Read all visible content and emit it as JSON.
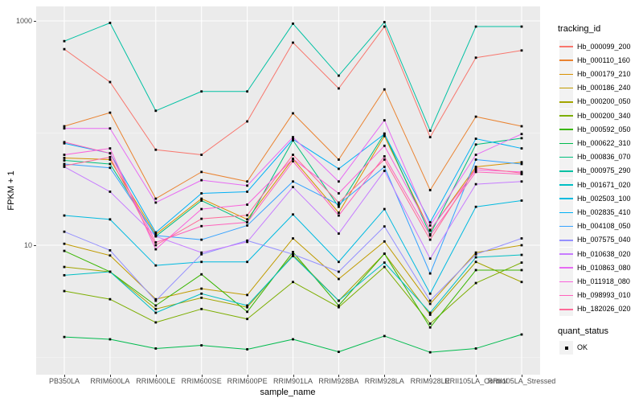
{
  "figure": {
    "y_axis": {
      "title": "FPKM + 1",
      "scale": "log10",
      "tick_labels": [
        "1000",
        "10"
      ],
      "tick_values": [
        1000,
        10
      ],
      "minor_grid_values": [
        100,
        1
      ]
    },
    "x_axis": {
      "title": "sample_name"
    },
    "legend": {
      "tracking_title": "tracking_id",
      "quant_title": "quant_status",
      "quant_ok_label": "OK",
      "quant_marker": "black-square"
    },
    "colors": {
      "panel_bg": "#EBEBEB",
      "grid": "#FFFFFF",
      "point": "#000000",
      "axis_text": "#4D4D4D",
      "legend_key_bg": "#F2F2F2"
    }
  },
  "chart_data": {
    "type": "line",
    "title": "",
    "xlabel": "sample_name",
    "ylabel": "FPKM + 1",
    "yscale": "log10",
    "ylim": [
      1,
      1000
    ],
    "yticks": [
      1000,
      10
    ],
    "grid": true,
    "legend_position": "right",
    "point_marker": "black-square",
    "x": [
      "PB350LA",
      "RRIM600LA",
      "RRIM600LE",
      "RRIM600SE",
      "RRIM600PE",
      "RRIM901LA",
      "RRIM928BA",
      "RRIM928LA",
      "RRIM928LE",
      "RRII105LA_Control",
      "RRII105LA_Stressed"
    ],
    "series": [
      {
        "name": "Hb_000099_200",
        "color": "#F8766D",
        "values": [
          560,
          285,
          71,
          64,
          127,
          640,
          250,
          890,
          92,
          470,
          545
        ]
      },
      {
        "name": "Hb_000110_160",
        "color": "#EA8331",
        "values": [
          115,
          152,
          26,
          45,
          37,
          150,
          58,
          245,
          31,
          140,
          115
        ]
      },
      {
        "name": "Hb_000179_210",
        "color": "#D89000",
        "values": [
          60,
          58,
          12.5,
          26,
          17,
          59,
          19.5,
          94,
          13.5,
          50,
          55
        ]
      },
      {
        "name": "Hb_000186_240",
        "color": "#C09B00",
        "values": [
          10.3,
          8.1,
          3.3,
          4.1,
          3.6,
          11.5,
          5,
          10.8,
          3,
          8.6,
          10
        ]
      },
      {
        "name": "Hb_000200_050",
        "color": "#A3A500",
        "values": [
          6.4,
          5.8,
          2.7,
          3.4,
          2.8,
          8.2,
          3.2,
          8.4,
          2.4,
          7.1,
          4.7
        ]
      },
      {
        "name": "Hb_000200_340",
        "color": "#7CAE00",
        "values": [
          3.9,
          3.3,
          2.05,
          2.7,
          2.2,
          4.7,
          2.8,
          6.4,
          2,
          4.6,
          7
        ]
      },
      {
        "name": "Hb_000592_050",
        "color": "#39B600",
        "values": [
          8.9,
          5.8,
          2.9,
          5.5,
          2.55,
          8.7,
          2.9,
          8.4,
          1.85,
          6,
          6
        ]
      },
      {
        "name": "Hb_000622_310",
        "color": "#00BB4E",
        "values": [
          1.52,
          1.45,
          1.2,
          1.28,
          1.18,
          1.45,
          1.12,
          1.55,
          1.11,
          1.2,
          1.6
        ]
      },
      {
        "name": "Hb_000836_070",
        "color": "#00BF7D",
        "values": [
          57,
          53,
          12,
          25,
          16,
          86,
          22,
          99,
          12.5,
          79,
          90
        ]
      },
      {
        "name": "Hb_000975_290",
        "color": "#00C1A3",
        "values": [
          660,
          960,
          158,
          235,
          235,
          945,
          325,
          975,
          105,
          890,
          890
        ]
      },
      {
        "name": "Hb_001671_020",
        "color": "#00BFC4",
        "values": [
          5.4,
          5.8,
          2.5,
          3.7,
          2.9,
          8,
          3.2,
          7,
          2.5,
          7.8,
          8.2
        ]
      },
      {
        "name": "Hb_002503_100",
        "color": "#00BAE0",
        "values": [
          18.4,
          17,
          6.6,
          7.1,
          7.1,
          18.8,
          7.1,
          21,
          3.7,
          22,
          25
        ]
      },
      {
        "name": "Hb_002835_410",
        "color": "#00B0F6",
        "values": [
          81,
          66,
          13,
          29,
          30,
          88,
          48,
          98,
          16,
          89,
          73
        ]
      },
      {
        "name": "Hb_004108_050",
        "color": "#35A2FF",
        "values": [
          53,
          49,
          12.2,
          11.2,
          15,
          37,
          23,
          50,
          5.6,
          58,
          53
        ]
      },
      {
        "name": "Hb_007575_040",
        "color": "#9590FF",
        "values": [
          13.2,
          9,
          3.2,
          8.3,
          11,
          8.3,
          5.8,
          14.7,
          3.2,
          8.3,
          11.5
        ]
      },
      {
        "name": "Hb_010638_020",
        "color": "#C77CFF",
        "values": [
          50,
          30,
          12,
          8.6,
          10.7,
          33,
          12.7,
          46,
          7.6,
          35,
          37
        ]
      },
      {
        "name": "Hb_010863_080",
        "color": "#E76BF3",
        "values": [
          110,
          110,
          24,
          38,
          34,
          92,
          37,
          130,
          15,
          64,
          98
        ]
      },
      {
        "name": "Hb_011918_080",
        "color": "#FA62DB",
        "values": [
          64,
          73,
          9.2,
          21,
          23,
          59,
          29,
          77,
          13.7,
          47,
          45
        ]
      },
      {
        "name": "Hb_098993_010",
        "color": "#FF62BC",
        "values": [
          83,
          66,
          10.6,
          14.8,
          16,
          56,
          18.4,
          62,
          12.2,
          45,
          43
        ]
      },
      {
        "name": "Hb_182026_020",
        "color": "#FF6A98",
        "values": [
          51,
          61,
          10,
          17.2,
          18.5,
          64,
          24,
          58,
          11.2,
          49,
          44
        ]
      }
    ],
    "quant_status": {
      "label": "OK",
      "marker": "black-square"
    }
  }
}
